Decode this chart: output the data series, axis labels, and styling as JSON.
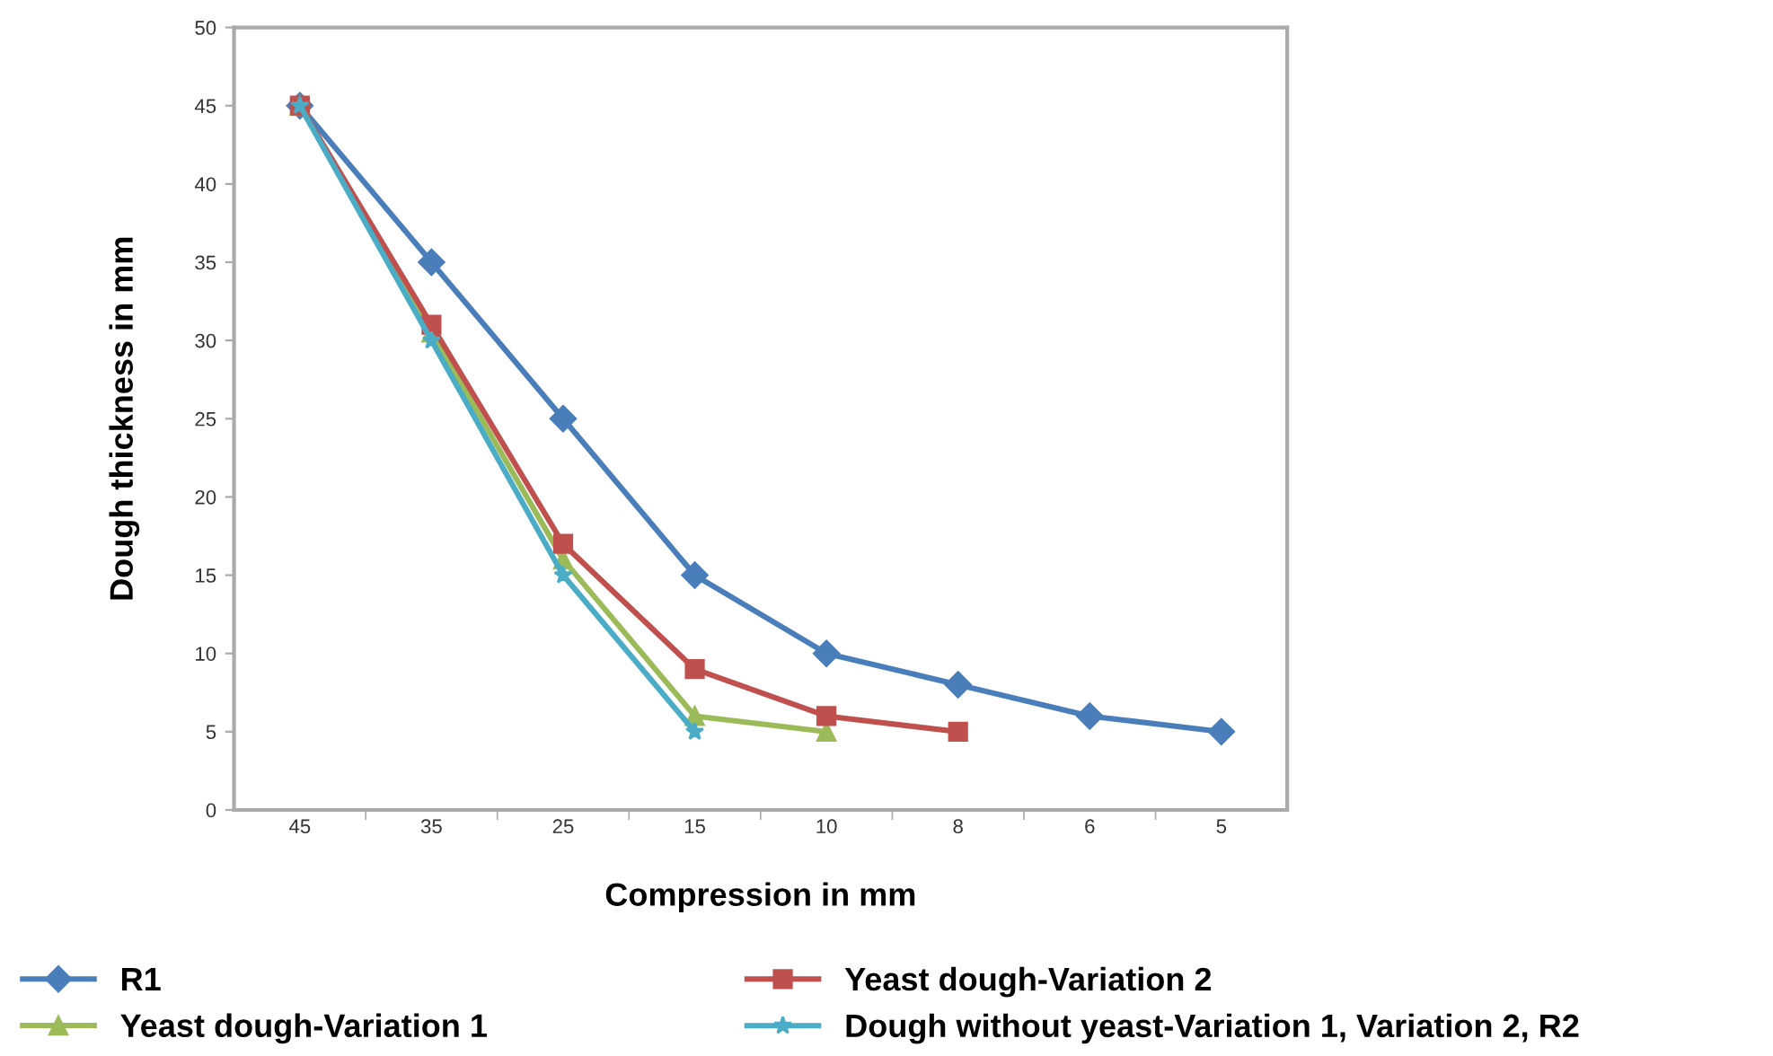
{
  "chart_data": {
    "type": "line",
    "xlabel": "Compression in mm",
    "ylabel": "Dough thickness in mm",
    "categories": [
      "45",
      "35",
      "25",
      "15",
      "10",
      "8",
      "6",
      "5"
    ],
    "ylim": [
      0,
      50
    ],
    "yticks": [
      0,
      5,
      10,
      15,
      20,
      25,
      30,
      35,
      40,
      45,
      50
    ],
    "grid": false,
    "legend": "bottom",
    "line_style": "solid",
    "series": [
      {
        "name": "R1",
        "color": "#4a7ebb",
        "marker": "diamond",
        "values": [
          45,
          35,
          25,
          15,
          10,
          8,
          6,
          5
        ]
      },
      {
        "name": "Yeast dough-Variation 1",
        "color": "#9bbb59",
        "marker": "triangle",
        "values": [
          45,
          30.5,
          16,
          6,
          5,
          null,
          null,
          null
        ]
      },
      {
        "name": "Yeast dough-Variation 2",
        "color": "#c0504d",
        "marker": "square",
        "values": [
          45,
          31,
          17,
          9,
          6,
          5,
          null,
          null
        ]
      },
      {
        "name": "Dough without yeast-Variation 1, Variation 2, R2",
        "color": "#4bacc6",
        "marker": "star",
        "values": [
          45,
          30,
          15,
          5,
          null,
          null,
          null,
          null
        ]
      }
    ]
  }
}
